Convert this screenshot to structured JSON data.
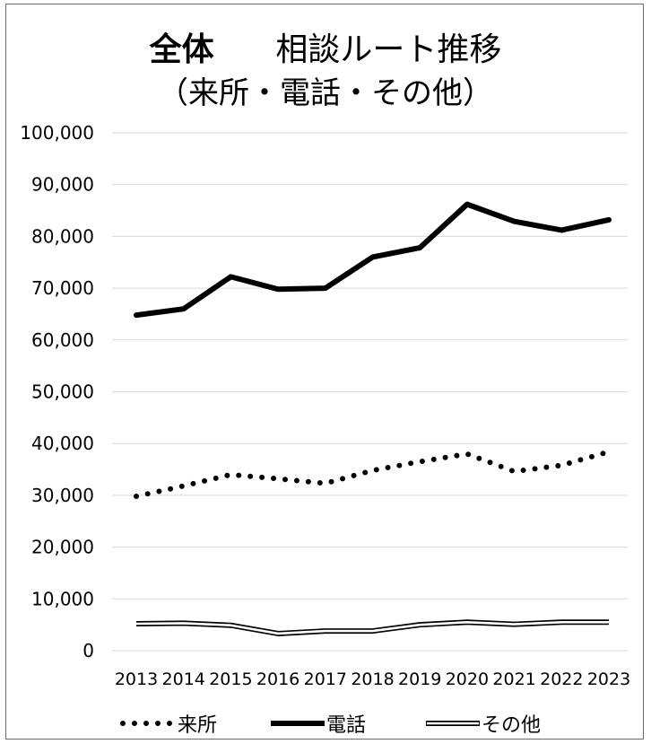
{
  "chart_data": {
    "type": "line",
    "title_part1": "全体",
    "title_part2": "相談ルート推移",
    "subtitle": "（来所・電話・その他）",
    "categories": [
      "2013",
      "2014",
      "2015",
      "2016",
      "2017",
      "2018",
      "2019",
      "2020",
      "2021",
      "2022",
      "2023"
    ],
    "ylim": [
      0,
      100000
    ],
    "yticks": [
      "0",
      "10,000",
      "20,000",
      "30,000",
      "40,000",
      "50,000",
      "60,000",
      "70,000",
      "80,000",
      "90,000",
      "100,000"
    ],
    "grid": true,
    "legend_position": "bottom",
    "series": [
      {
        "name": "来所",
        "style": "dotted",
        "values": [
          29800,
          31800,
          34000,
          33200,
          32300,
          34800,
          36500,
          38000,
          34600,
          35800,
          38400
        ]
      },
      {
        "name": "電話",
        "style": "thick",
        "values": [
          64800,
          66000,
          72200,
          69800,
          70000,
          76000,
          77800,
          86200,
          82900,
          81200,
          83200
        ]
      },
      {
        "name": "その他",
        "style": "double",
        "values": [
          5200,
          5300,
          4900,
          3300,
          3800,
          3800,
          5000,
          5500,
          5100,
          5500,
          5500
        ]
      }
    ]
  }
}
